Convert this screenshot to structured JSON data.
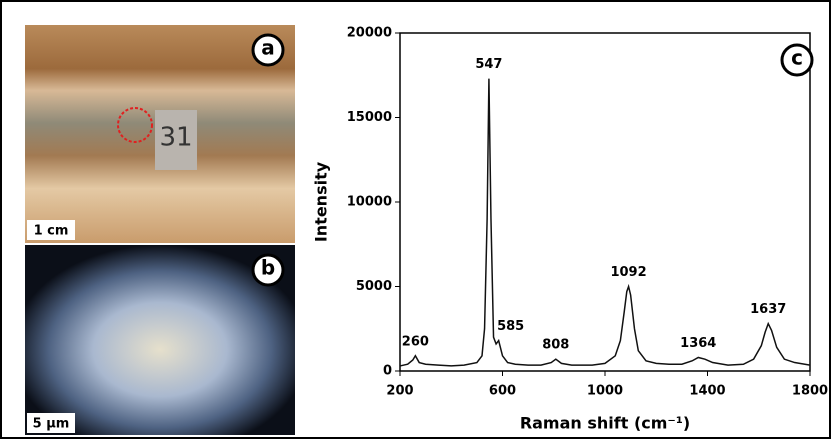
{
  "chart_data": {
    "type": "line",
    "panel_label": "c",
    "x_label": "Raman shift (cm⁻¹)",
    "y_label": "Intensity",
    "x": [
      200,
      230,
      250,
      260,
      275,
      300,
      350,
      400,
      450,
      500,
      520,
      530,
      540,
      547,
      555,
      565,
      575,
      585,
      600,
      620,
      650,
      700,
      750,
      790,
      808,
      830,
      870,
      950,
      1000,
      1040,
      1060,
      1075,
      1085,
      1092,
      1100,
      1115,
      1130,
      1160,
      1200,
      1250,
      1300,
      1340,
      1364,
      1390,
      1420,
      1480,
      1540,
      1580,
      1610,
      1625,
      1637,
      1650,
      1670,
      1700,
      1740,
      1780,
      1800
    ],
    "series": [
      {
        "name": "Intensity",
        "color": "#111111",
        "values": [
          300,
          400,
          650,
          900,
          500,
          400,
          350,
          300,
          350,
          500,
          900,
          2500,
          9000,
          17300,
          9000,
          2000,
          1600,
          1800,
          900,
          500,
          400,
          350,
          350,
          500,
          700,
          450,
          350,
          350,
          450,
          900,
          1800,
          3500,
          4700,
          5000,
          4500,
          2500,
          1200,
          600,
          450,
          400,
          400,
          600,
          800,
          700,
          500,
          350,
          400,
          700,
          1500,
          2300,
          2800,
          2400,
          1400,
          700,
          500,
          400,
          350
        ]
      }
    ],
    "peak_labels": [
      260,
      547,
      585,
      808,
      1092,
      1364,
      1637
    ],
    "xlim": [
      200,
      1800
    ],
    "xticks": [
      200,
      600,
      1000,
      1400,
      1800
    ],
    "ylim": [
      0,
      20000
    ],
    "yticks": [
      0,
      5000,
      10000,
      15000,
      20000
    ]
  },
  "photos": [
    {
      "label": "a",
      "scale": "1 cm",
      "sample_tag": "31"
    },
    {
      "label": "b",
      "scale": "5 µm"
    }
  ]
}
